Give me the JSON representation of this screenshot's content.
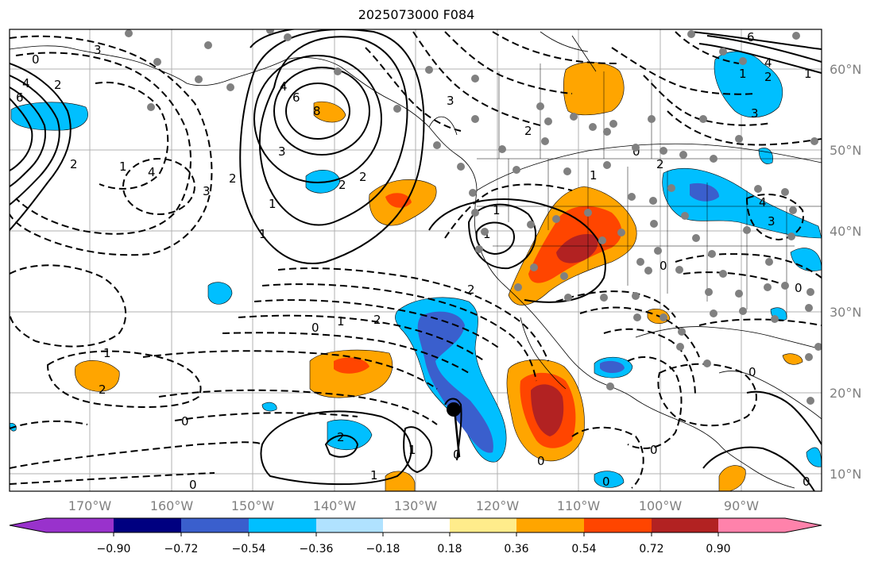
{
  "title": "2025073000 F084",
  "lon_ticks": [
    "170°W",
    "160°W",
    "150°W",
    "140°W",
    "130°W",
    "120°W",
    "110°W",
    "100°W",
    "90°W"
  ],
  "lat_ticks": [
    "60°N",
    "50°N",
    "40°N",
    "30°N",
    "20°N",
    "10°N"
  ],
  "colorbar": {
    "colors": [
      "#9932cc",
      "#000080",
      "#3a5fcd",
      "#00bfff",
      "#b0e2ff",
      "#ffffff",
      "#ffec8b",
      "#ffa500",
      "#ff4500",
      "#b22222",
      "#ff82ab"
    ],
    "tick_labels": [
      "−0.90",
      "−0.72",
      "−0.54",
      "−0.36",
      "−0.18",
      "0.18",
      "0.36",
      "0.54",
      "0.72",
      "0.90"
    ]
  },
  "contour_labels": [
    "0",
    "3",
    "4",
    "6",
    "2",
    "1",
    "2",
    "4",
    "3",
    "2",
    "1",
    "6",
    "4",
    "8",
    "2",
    "1",
    "3",
    "2",
    "3",
    "2",
    "1",
    "4",
    "6",
    "1",
    "1",
    "2",
    "0",
    "1",
    "1",
    "3",
    "2",
    "0",
    "1",
    "2",
    "0",
    "0",
    "1",
    "2",
    "1",
    "1",
    "0",
    "0",
    "0",
    "2",
    "0",
    "0",
    "0",
    "4",
    "3",
    "2",
    "0",
    "0"
  ],
  "storm_marker": "storm-center"
}
